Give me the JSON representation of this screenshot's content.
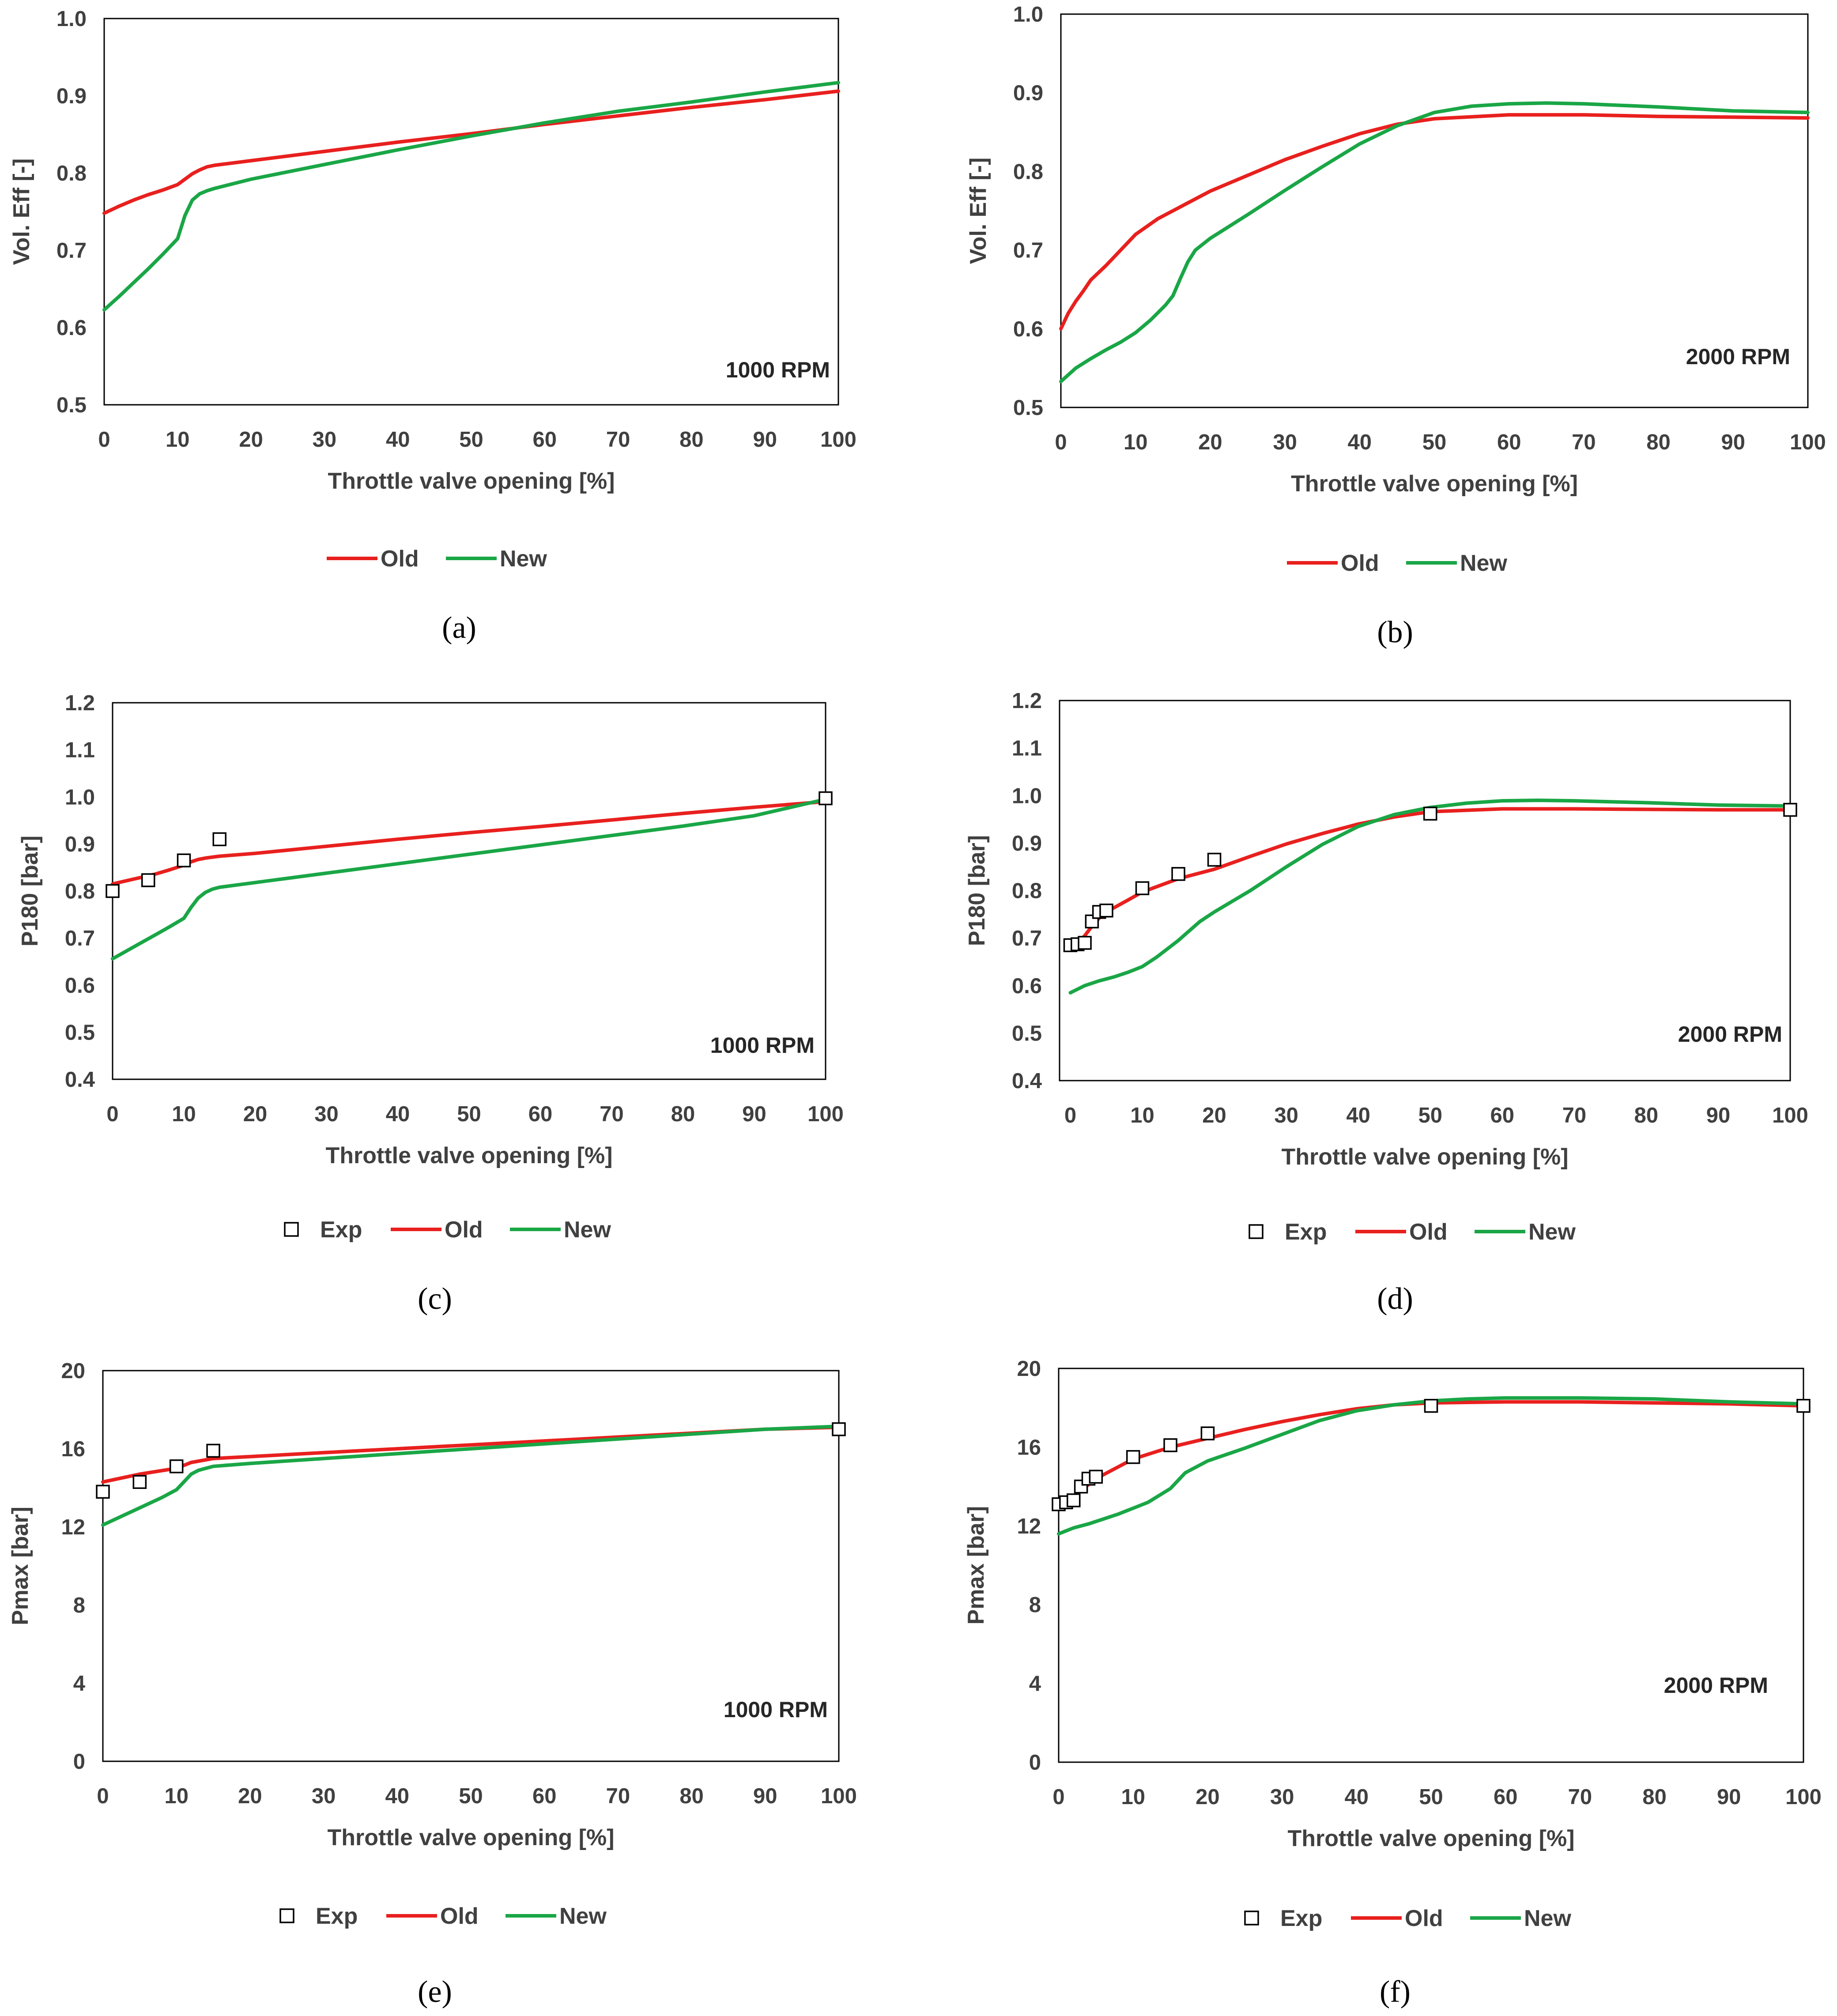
{
  "colors": {
    "old": "#e8201e",
    "new": "#1aa646",
    "exp": "#000000",
    "axis": "#000000"
  },
  "chart_data": [
    {
      "id": "a",
      "type": "line",
      "caption_letter": "a",
      "xlabel": "Throttle valve opening [%]",
      "ylabel": "Vol. Eff [-]",
      "annotation": "1000 RPM",
      "xlim": [
        0,
        100
      ],
      "ylim": [
        0.5,
        1.0
      ],
      "xticks": [
        0,
        10,
        20,
        30,
        40,
        50,
        60,
        70,
        80,
        90,
        100
      ],
      "xticks_precise": false,
      "yticks": [
        0.5,
        0.6,
        0.7,
        0.8,
        0.9,
        1.0
      ],
      "ytick_decimals": 1,
      "legend": [
        "Old",
        "New"
      ],
      "series": [
        {
          "name": "Old",
          "x": [
            0,
            2,
            4,
            6,
            8,
            10,
            11,
            12,
            13,
            14,
            15,
            20,
            30,
            40,
            50,
            60,
            70,
            80,
            90,
            100
          ],
          "y": [
            0.748,
            0.757,
            0.765,
            0.772,
            0.778,
            0.785,
            0.792,
            0.799,
            0.804,
            0.808,
            0.81,
            0.816,
            0.828,
            0.84,
            0.851,
            0.863,
            0.874,
            0.885,
            0.895,
            0.906
          ]
        },
        {
          "name": "New",
          "x": [
            0,
            2,
            4,
            6,
            8,
            10,
            11,
            12,
            13,
            14,
            15,
            20,
            30,
            40,
            50,
            60,
            70,
            80,
            90,
            100
          ],
          "y": [
            0.623,
            0.64,
            0.658,
            0.676,
            0.695,
            0.715,
            0.745,
            0.765,
            0.773,
            0.777,
            0.78,
            0.792,
            0.811,
            0.83,
            0.848,
            0.865,
            0.88,
            0.892,
            0.905,
            0.917
          ]
        }
      ]
    },
    {
      "id": "b",
      "type": "line",
      "caption_letter": "b",
      "xlabel": "Throttle valve opening [%]",
      "ylabel": "Vol. Eff [-]",
      "annotation": "2000 RPM",
      "xlim": [
        0,
        100
      ],
      "ylim": [
        0.5,
        1.0
      ],
      "xticks": [
        0,
        10,
        20,
        30,
        40,
        50,
        60,
        70,
        80,
        90,
        100
      ],
      "xticks_precise": false,
      "yticks": [
        0.5,
        0.6,
        0.7,
        0.8,
        0.9,
        1.0
      ],
      "ytick_decimals": 1,
      "legend": [
        "Old",
        "New"
      ],
      "series": [
        {
          "name": "Old",
          "x": [
            0,
            1,
            2,
            3,
            4,
            6,
            8,
            10,
            13,
            16,
            20,
            25,
            30,
            35,
            40,
            45,
            50,
            60,
            70,
            80,
            90,
            100
          ],
          "y": [
            0.6,
            0.62,
            0.635,
            0.648,
            0.662,
            0.68,
            0.7,
            0.72,
            0.74,
            0.755,
            0.775,
            0.795,
            0.815,
            0.832,
            0.848,
            0.86,
            0.867,
            0.872,
            0.872,
            0.87,
            0.869,
            0.868
          ]
        },
        {
          "name": "New",
          "x": [
            0,
            2,
            4,
            6,
            8,
            10,
            12,
            14,
            15,
            16,
            17,
            18,
            20,
            25,
            30,
            35,
            40,
            45,
            50,
            55,
            60,
            65,
            70,
            80,
            90,
            100
          ],
          "y": [
            0.533,
            0.55,
            0.562,
            0.573,
            0.583,
            0.595,
            0.611,
            0.63,
            0.642,
            0.664,
            0.685,
            0.7,
            0.715,
            0.745,
            0.776,
            0.806,
            0.835,
            0.858,
            0.875,
            0.883,
            0.886,
            0.887,
            0.886,
            0.882,
            0.877,
            0.875
          ]
        }
      ]
    },
    {
      "id": "c",
      "type": "line",
      "caption_letter": "c",
      "xlabel": "Throttle valve opening [%]",
      "ylabel": "P180 [bar]",
      "annotation": "1000 RPM",
      "xlim": [
        0,
        100
      ],
      "ylim": [
        0.4,
        1.2
      ],
      "xticks": [
        0,
        10,
        20,
        30,
        40,
        50,
        60,
        70,
        80,
        90,
        100
      ],
      "xticks_precise": false,
      "yticks": [
        0.4,
        0.5,
        0.6,
        0.7,
        0.8,
        0.9,
        1.0,
        1.1,
        1.2
      ],
      "ytick_decimals": 1,
      "legend": [
        "Exp",
        "Old",
        "New"
      ],
      "exp": {
        "x": [
          0,
          5,
          10,
          15,
          100
        ],
        "y": [
          0.8,
          0.823,
          0.865,
          0.91,
          0.997
        ]
      },
      "series": [
        {
          "name": "Old",
          "x": [
            0,
            2,
            4,
            6,
            8,
            10,
            11,
            12,
            13,
            14,
            15,
            20,
            30,
            40,
            50,
            60,
            70,
            80,
            90,
            100
          ],
          "y": [
            0.815,
            0.822,
            0.829,
            0.836,
            0.845,
            0.855,
            0.862,
            0.867,
            0.87,
            0.872,
            0.874,
            0.88,
            0.895,
            0.91,
            0.924,
            0.937,
            0.951,
            0.965,
            0.978,
            0.99
          ]
        },
        {
          "name": "New",
          "x": [
            0,
            2,
            4,
            6,
            8,
            10,
            11,
            12,
            13,
            14,
            15,
            20,
            30,
            40,
            50,
            60,
            70,
            80,
            90,
            100
          ],
          "y": [
            0.656,
            0.673,
            0.69,
            0.707,
            0.724,
            0.742,
            0.765,
            0.785,
            0.797,
            0.804,
            0.808,
            0.818,
            0.838,
            0.858,
            0.878,
            0.898,
            0.918,
            0.938,
            0.96,
            0.995
          ]
        }
      ]
    },
    {
      "id": "d",
      "type": "line",
      "caption_letter": "d",
      "xlabel": "Throttle valve opening [%]",
      "ylabel": "P180 [bar]",
      "annotation": "2000 RPM",
      "xlim": [
        -1.5,
        100
      ],
      "ylim": [
        0.4,
        1.2
      ],
      "xticks": [
        0,
        10,
        20,
        30,
        40,
        50,
        60,
        70,
        80,
        90,
        100
      ],
      "xticks_precise": true,
      "yticks": [
        0.4,
        0.5,
        0.6,
        0.7,
        0.8,
        0.9,
        1.0,
        1.1,
        1.2
      ],
      "ytick_decimals": 1,
      "legend": [
        "Exp",
        "Old",
        "New"
      ],
      "exp": {
        "x": [
          0,
          1,
          2,
          3,
          4,
          5,
          10,
          15,
          20,
          50,
          100
        ],
        "y": [
          0.685,
          0.687,
          0.69,
          0.735,
          0.755,
          0.758,
          0.805,
          0.835,
          0.865,
          0.962,
          0.97
        ]
      },
      "series": [
        {
          "name": "Old",
          "x": [
            0,
            1,
            2,
            3,
            4,
            5,
            8,
            10,
            15,
            20,
            25,
            30,
            35,
            40,
            45,
            50,
            60,
            70,
            80,
            90,
            100
          ],
          "y": [
            0.685,
            0.69,
            0.705,
            0.725,
            0.742,
            0.755,
            0.78,
            0.797,
            0.825,
            0.845,
            0.872,
            0.898,
            0.92,
            0.94,
            0.955,
            0.966,
            0.972,
            0.972,
            0.971,
            0.97,
            0.97
          ]
        },
        {
          "name": "New",
          "x": [
            0,
            2,
            4,
            6,
            8,
            10,
            12,
            15,
            18,
            20,
            25,
            30,
            35,
            40,
            45,
            50,
            55,
            60,
            65,
            70,
            80,
            90,
            100
          ],
          "y": [
            0.585,
            0.6,
            0.61,
            0.618,
            0.628,
            0.64,
            0.66,
            0.695,
            0.735,
            0.755,
            0.8,
            0.85,
            0.897,
            0.935,
            0.96,
            0.975,
            0.984,
            0.989,
            0.99,
            0.989,
            0.985,
            0.98,
            0.978
          ]
        }
      ]
    },
    {
      "id": "e",
      "type": "line",
      "caption_letter": "e",
      "xlabel": "Throttle valve opening [%]",
      "ylabel": "Pmax [bar]",
      "annotation": "1000 RPM",
      "xlim": [
        0,
        100
      ],
      "ylim": [
        0,
        20
      ],
      "xticks": [
        0,
        10,
        20,
        30,
        40,
        50,
        60,
        70,
        80,
        90,
        100
      ],
      "xticks_precise": false,
      "yticks": [
        0,
        4,
        8,
        12,
        16,
        20
      ],
      "ytick_decimals": 0,
      "legend": [
        "Exp",
        "Old",
        "New"
      ],
      "exp": {
        "x": [
          0,
          5,
          10,
          15,
          100
        ],
        "y": [
          13.8,
          14.3,
          15.1,
          15.9,
          17.0
        ]
      },
      "series": [
        {
          "name": "Old",
          "x": [
            0,
            5,
            10,
            12,
            15,
            20,
            30,
            40,
            50,
            60,
            70,
            80,
            90,
            100
          ],
          "y": [
            14.3,
            14.7,
            15.0,
            15.3,
            15.5,
            15.6,
            15.8,
            16.0,
            16.2,
            16.4,
            16.6,
            16.8,
            17.0,
            17.1
          ]
        },
        {
          "name": "New",
          "x": [
            0,
            2,
            4,
            6,
            8,
            10,
            11,
            12,
            13,
            14,
            15,
            20,
            30,
            40,
            50,
            60,
            70,
            80,
            90,
            100
          ],
          "y": [
            12.1,
            12.45,
            12.8,
            13.15,
            13.5,
            13.9,
            14.3,
            14.7,
            14.9,
            15.0,
            15.1,
            15.25,
            15.5,
            15.75,
            16.0,
            16.25,
            16.5,
            16.75,
            17.0,
            17.15
          ]
        }
      ]
    },
    {
      "id": "f",
      "type": "line",
      "caption_letter": "f",
      "xlabel": "Throttle valve opening  [%]",
      "ylabel": "Pmax [bar]",
      "annotation": "2000 RPM",
      "xlim": [
        0,
        100
      ],
      "ylim": [
        0,
        20
      ],
      "xticks": [
        0,
        10,
        20,
        30,
        40,
        50,
        60,
        70,
        80,
        90,
        100
      ],
      "xticks_precise": false,
      "yticks": [
        0,
        4,
        8,
        12,
        16,
        20
      ],
      "ytick_decimals": 0,
      "legend": [
        "Exp",
        "Old",
        "New"
      ],
      "exp": {
        "x": [
          0,
          1,
          2,
          3,
          4,
          5,
          10,
          15,
          20,
          50,
          100
        ],
        "y": [
          13.1,
          13.2,
          13.3,
          14.0,
          14.4,
          14.5,
          15.5,
          16.1,
          16.7,
          18.1,
          18.1
        ]
      },
      "series": [
        {
          "name": "Old",
          "x": [
            0,
            1,
            2,
            3,
            4,
            5,
            8,
            10,
            15,
            20,
            25,
            30,
            35,
            40,
            45,
            50,
            60,
            70,
            80,
            90,
            100
          ],
          "y": [
            13.1,
            13.25,
            13.5,
            13.8,
            14.1,
            14.4,
            15.0,
            15.4,
            16.0,
            16.45,
            16.9,
            17.3,
            17.65,
            17.95,
            18.15,
            18.25,
            18.3,
            18.3,
            18.25,
            18.2,
            18.1
          ]
        },
        {
          "name": "New",
          "x": [
            0,
            2,
            4,
            6,
            8,
            10,
            12,
            15,
            17,
            20,
            25,
            30,
            35,
            40,
            45,
            50,
            55,
            60,
            65,
            70,
            80,
            90,
            100
          ],
          "y": [
            11.6,
            11.9,
            12.1,
            12.35,
            12.6,
            12.9,
            13.2,
            13.9,
            14.7,
            15.3,
            15.95,
            16.65,
            17.35,
            17.85,
            18.15,
            18.35,
            18.45,
            18.5,
            18.5,
            18.5,
            18.45,
            18.3,
            18.2
          ]
        }
      ]
    }
  ]
}
